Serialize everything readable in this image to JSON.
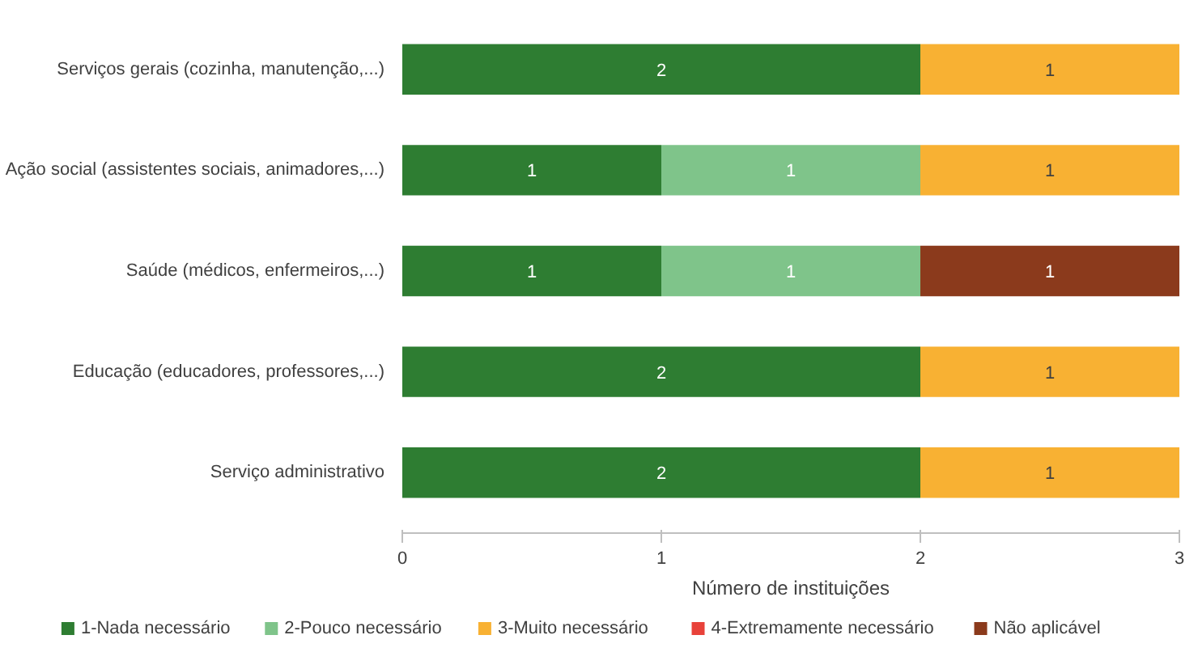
{
  "chart_data": {
    "type": "bar",
    "orientation": "horizontal",
    "stacked": true,
    "data_labels": true,
    "xlabel": "Número de instituições",
    "categories": [
      "Serviços gerais (cozinha, manutenção,...)",
      "Ação social (assistentes sociais, animadores,...)",
      "Saúde (médicos, enfermeiros,...)",
      "Educação (educadores, professores,...)",
      "Serviço administrativo"
    ],
    "series": [
      {
        "name": "1-Nada necessário",
        "color": "#2e7d32",
        "values": [
          2,
          1,
          1,
          2,
          2
        ]
      },
      {
        "name": "2-Pouco necessário",
        "color": "#7fc48a",
        "values": [
          null,
          1,
          1,
          null,
          null
        ]
      },
      {
        "name": "3-Muito necessário",
        "color": "#f8b133",
        "values": [
          1,
          1,
          null,
          1,
          1
        ]
      },
      {
        "name": "4-Extremamente necessário",
        "color": "#e8423a",
        "values": [
          null,
          null,
          null,
          null,
          null
        ]
      },
      {
        "name": "Não aplicável",
        "color": "#8b3a1c",
        "values": [
          null,
          null,
          1,
          null,
          null
        ]
      }
    ],
    "xlim": [
      0,
      3
    ],
    "xticks": [
      0,
      1,
      2,
      3
    ],
    "grid": false,
    "legend": "bottom"
  }
}
